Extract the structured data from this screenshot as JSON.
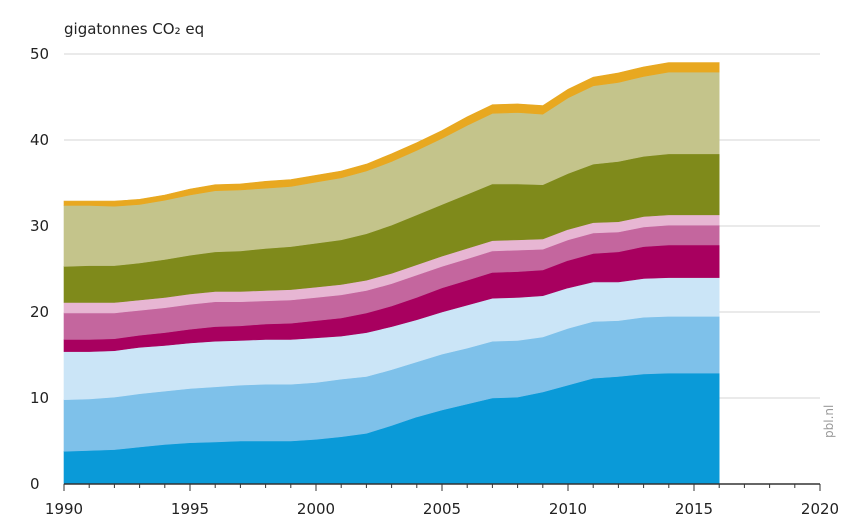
{
  "chart_data": {
    "type": "area",
    "stacked": true,
    "title": "",
    "ylabel": "gigatonnes CO₂ eq",
    "xlabel": "",
    "xlim": [
      1990,
      2020
    ],
    "ylim": [
      0,
      50
    ],
    "x_ticks": [
      1990,
      1995,
      2000,
      2005,
      2010,
      2015,
      2020
    ],
    "y_ticks": [
      0,
      10,
      20,
      30,
      40,
      50
    ],
    "grid": "horizontal",
    "legend": "none",
    "x": [
      1990,
      1991,
      1992,
      1993,
      1994,
      1995,
      1996,
      1997,
      1998,
      1999,
      2000,
      2001,
      2002,
      2003,
      2004,
      2005,
      2006,
      2007,
      2008,
      2009,
      2010,
      2011,
      2012,
      2013,
      2014,
      2015,
      2016
    ],
    "series": [
      {
        "color": "#0a9ad8",
        "values": [
          3.8,
          3.9,
          4.0,
          4.3,
          4.6,
          4.8,
          4.9,
          5.0,
          5.0,
          5.0,
          5.2,
          5.5,
          5.9,
          6.8,
          7.8,
          8.6,
          9.3,
          10.0,
          10.1,
          10.7,
          11.5,
          12.3,
          12.5,
          12.8,
          12.9,
          12.9,
          12.9
        ]
      },
      {
        "color": "#7ec1ea",
        "values": [
          6.0,
          6.0,
          6.1,
          6.2,
          6.2,
          6.3,
          6.4,
          6.5,
          6.6,
          6.6,
          6.6,
          6.7,
          6.6,
          6.5,
          6.4,
          6.5,
          6.5,
          6.6,
          6.6,
          6.4,
          6.6,
          6.6,
          6.5,
          6.6,
          6.6,
          6.6,
          6.6
        ]
      },
      {
        "color": "#cbe5f7",
        "values": [
          5.6,
          5.5,
          5.4,
          5.4,
          5.3,
          5.3,
          5.3,
          5.2,
          5.2,
          5.2,
          5.2,
          5.0,
          5.1,
          5.0,
          4.9,
          4.9,
          5.0,
          5.0,
          5.0,
          4.8,
          4.7,
          4.6,
          4.5,
          4.5,
          4.5,
          4.5,
          4.5
        ]
      },
      {
        "color": "#a8005f",
        "values": [
          1.4,
          1.4,
          1.4,
          1.4,
          1.5,
          1.6,
          1.7,
          1.7,
          1.8,
          1.9,
          2.0,
          2.1,
          2.3,
          2.4,
          2.6,
          2.8,
          2.9,
          3.0,
          3.0,
          3.0,
          3.2,
          3.3,
          3.5,
          3.7,
          3.8,
          3.8,
          3.8
        ]
      },
      {
        "color": "#c4669e",
        "values": [
          3.1,
          3.1,
          3.0,
          2.9,
          2.9,
          2.9,
          2.9,
          2.8,
          2.7,
          2.7,
          2.7,
          2.7,
          2.6,
          2.6,
          2.6,
          2.5,
          2.5,
          2.5,
          2.5,
          2.4,
          2.4,
          2.4,
          2.3,
          2.3,
          2.3,
          2.3,
          2.3
        ]
      },
      {
        "color": "#e7b6d3",
        "values": [
          1.2,
          1.2,
          1.2,
          1.2,
          1.2,
          1.2,
          1.2,
          1.2,
          1.2,
          1.2,
          1.2,
          1.2,
          1.2,
          1.2,
          1.2,
          1.2,
          1.2,
          1.2,
          1.2,
          1.2,
          1.2,
          1.2,
          1.2,
          1.2,
          1.2,
          1.2,
          1.2
        ]
      },
      {
        "color": "#7f8a1b",
        "values": [
          4.2,
          4.3,
          4.3,
          4.3,
          4.4,
          4.5,
          4.6,
          4.7,
          4.9,
          5.0,
          5.1,
          5.2,
          5.4,
          5.6,
          5.8,
          6.0,
          6.3,
          6.6,
          6.5,
          6.3,
          6.5,
          6.8,
          7.0,
          7.0,
          7.1,
          7.1,
          7.1
        ]
      },
      {
        "color": "#c4c48b",
        "values": [
          7.1,
          7.0,
          6.9,
          6.8,
          6.9,
          7.0,
          7.1,
          7.1,
          7.0,
          7.0,
          7.1,
          7.2,
          7.3,
          7.4,
          7.5,
          7.7,
          8.0,
          8.2,
          8.3,
          8.2,
          8.8,
          9.1,
          9.2,
          9.3,
          9.5,
          9.5,
          9.5
        ]
      },
      {
        "color": "#e8a820",
        "values": [
          0.5,
          0.5,
          0.6,
          0.6,
          0.6,
          0.7,
          0.7,
          0.7,
          0.8,
          0.8,
          0.8,
          0.8,
          0.8,
          0.9,
          0.9,
          0.9,
          1.0,
          1.0,
          1.0,
          1.0,
          1.0,
          1.0,
          1.1,
          1.1,
          1.1,
          1.1,
          1.1
        ]
      }
    ]
  },
  "source_credit": "pbl.nl"
}
